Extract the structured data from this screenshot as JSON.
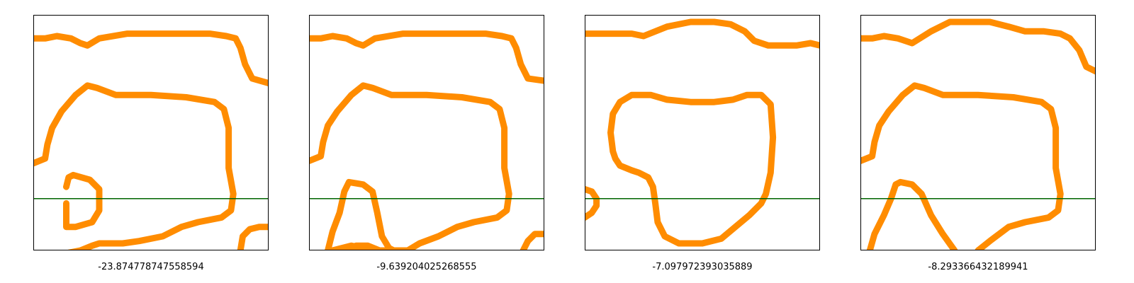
{
  "style": {
    "curve_color": "#ff8c00",
    "line_color": "#006400",
    "frame_color": "#000000",
    "background": "#ffffff"
  },
  "chart_data": [
    {
      "type": "line",
      "label": "-23.874778747558594",
      "xlim": [
        0,
        1
      ],
      "ylim": [
        0,
        1
      ],
      "axes": "off",
      "grid": false,
      "horizontal_line_y": 0.22,
      "curves": [
        {
          "x": [
            0,
            0.05,
            0.1,
            0.16,
            0.2,
            0.23,
            0.28,
            0.4,
            0.55,
            0.65,
            0.75,
            0.82,
            0.86,
            0.88,
            0.9,
            0.93,
            1.0
          ],
          "y": [
            0.9,
            0.9,
            0.91,
            0.9,
            0.88,
            0.87,
            0.9,
            0.92,
            0.92,
            0.92,
            0.92,
            0.91,
            0.9,
            0.86,
            0.79,
            0.73,
            0.71
          ]
        },
        {
          "x": [
            0,
            0.05,
            0.06,
            0.08,
            0.12,
            0.18,
            0.23,
            0.27,
            0.35,
            0.5,
            0.65,
            0.77,
            0.81,
            0.83,
            0.83,
            0.85,
            0.84,
            0.8,
            0.7,
            0.63,
            0.55,
            0.45,
            0.38,
            0.32,
            0.28,
            0.25,
            0.2,
            0.15,
            0.12
          ],
          "y": [
            0.37,
            0.39,
            0.45,
            0.52,
            0.59,
            0.66,
            0.7,
            0.69,
            0.66,
            0.66,
            0.65,
            0.63,
            0.6,
            0.52,
            0.35,
            0.24,
            0.17,
            0.14,
            0.12,
            0.1,
            0.06,
            0.04,
            0.03,
            0.03,
            0.03,
            0.02,
            0.0,
            -0.01,
            -0.02
          ]
        },
        {
          "x": [
            0.14,
            0.15,
            0.17,
            0.24,
            0.28,
            0.28,
            0.25,
            0.18,
            0.14,
            0.14
          ],
          "y": [
            0.27,
            0.31,
            0.32,
            0.3,
            0.26,
            0.17,
            0.12,
            0.1,
            0.1,
            0.2
          ]
        },
        {
          "x": [
            0.88,
            0.89,
            0.92,
            0.96,
            1.0
          ],
          "y": [
            0.0,
            0.06,
            0.09,
            0.1,
            0.1
          ]
        }
      ]
    },
    {
      "type": "line",
      "label": "-9.639204025268555",
      "xlim": [
        0,
        1
      ],
      "ylim": [
        0,
        1
      ],
      "axes": "off",
      "grid": false,
      "horizontal_line_y": 0.22,
      "curves": [
        {
          "x": [
            0,
            0.05,
            0.1,
            0.16,
            0.2,
            0.23,
            0.28,
            0.4,
            0.55,
            0.65,
            0.75,
            0.82,
            0.86,
            0.88,
            0.9,
            0.93,
            1.0
          ],
          "y": [
            0.9,
            0.9,
            0.91,
            0.9,
            0.88,
            0.87,
            0.9,
            0.92,
            0.92,
            0.92,
            0.92,
            0.91,
            0.9,
            0.86,
            0.79,
            0.73,
            0.72
          ]
        },
        {
          "x": [
            0,
            0.05,
            0.06,
            0.08,
            0.12,
            0.18,
            0.23,
            0.27,
            0.35,
            0.5,
            0.65,
            0.77,
            0.81,
            0.83,
            0.83,
            0.85,
            0.84,
            0.8,
            0.7,
            0.63,
            0.55,
            0.47,
            0.42,
            0.35,
            0.28,
            0.18,
            0.1
          ],
          "y": [
            0.38,
            0.4,
            0.46,
            0.53,
            0.59,
            0.66,
            0.7,
            0.69,
            0.66,
            0.66,
            0.65,
            0.63,
            0.6,
            0.52,
            0.35,
            0.24,
            0.17,
            0.14,
            0.12,
            0.1,
            0.06,
            0.03,
            0.0,
            0.0,
            0.0,
            0.02,
            0.0
          ]
        },
        {
          "x": [
            0.08,
            0.1,
            0.13,
            0.15,
            0.17,
            0.23,
            0.27,
            0.29,
            0.31,
            0.34,
            0.36
          ],
          "y": [
            0.0,
            0.08,
            0.16,
            0.25,
            0.29,
            0.28,
            0.25,
            0.16,
            0.06,
            0.01,
            0.0
          ]
        },
        {
          "x": [
            0.15,
            0.2,
            0.25,
            0.3
          ],
          "y": [
            0.0,
            0.02,
            0.02,
            0.0
          ]
        },
        {
          "x": [
            0.91,
            0.93,
            0.96,
            1.0
          ],
          "y": [
            0.0,
            0.04,
            0.07,
            0.07
          ]
        }
      ]
    },
    {
      "type": "line",
      "label": "-7.097972393035889",
      "xlim": [
        0,
        1
      ],
      "ylim": [
        0,
        1
      ],
      "axes": "off",
      "grid": false,
      "horizontal_line_y": 0.22,
      "curves": [
        {
          "x": [
            0,
            0.1,
            0.2,
            0.25,
            0.35,
            0.45,
            0.55,
            0.62,
            0.68,
            0.72,
            0.78,
            0.85,
            0.9,
            0.96,
            1.0
          ],
          "y": [
            0.92,
            0.92,
            0.92,
            0.91,
            0.95,
            0.97,
            0.97,
            0.96,
            0.93,
            0.89,
            0.87,
            0.87,
            0.87,
            0.88,
            0.87
          ]
        },
        {
          "x": [
            0.11,
            0.12,
            0.15,
            0.2,
            0.28,
            0.35,
            0.45,
            0.55,
            0.63,
            0.69,
            0.75,
            0.79,
            0.8,
            0.79,
            0.77,
            0.75,
            0.7,
            0.58,
            0.5,
            0.4,
            0.34,
            0.31,
            0.3,
            0.29,
            0.27,
            0.23,
            0.2,
            0.15,
            0.13,
            0.12,
            0.11
          ],
          "y": [
            0.5,
            0.58,
            0.63,
            0.66,
            0.66,
            0.64,
            0.63,
            0.63,
            0.64,
            0.66,
            0.66,
            0.62,
            0.48,
            0.33,
            0.24,
            0.2,
            0.15,
            0.05,
            0.03,
            0.03,
            0.06,
            0.12,
            0.2,
            0.27,
            0.31,
            0.33,
            0.34,
            0.36,
            0.39,
            0.42,
            0.5
          ]
        },
        {
          "x": [
            0,
            0.03,
            0.05,
            0.05,
            0.03,
            0.0
          ],
          "y": [
            0.26,
            0.25,
            0.22,
            0.19,
            0.16,
            0.14
          ]
        }
      ]
    },
    {
      "type": "line",
      "label": "-8.293366432189941",
      "xlim": [
        0,
        1
      ],
      "ylim": [
        0,
        1
      ],
      "axes": "off",
      "grid": false,
      "horizontal_line_y": 0.22,
      "curves": [
        {
          "x": [
            0,
            0.05,
            0.1,
            0.16,
            0.22,
            0.3,
            0.38,
            0.45,
            0.55,
            0.63,
            0.7,
            0.78,
            0.85,
            0.89,
            0.93,
            0.96,
            1.0
          ],
          "y": [
            0.9,
            0.9,
            0.91,
            0.9,
            0.88,
            0.93,
            0.97,
            0.97,
            0.97,
            0.95,
            0.93,
            0.93,
            0.92,
            0.9,
            0.85,
            0.78,
            0.76
          ]
        },
        {
          "x": [
            0,
            0.05,
            0.06,
            0.08,
            0.12,
            0.18,
            0.23,
            0.27,
            0.35,
            0.5,
            0.65,
            0.77,
            0.81,
            0.83,
            0.83,
            0.85,
            0.84,
            0.8,
            0.7,
            0.63,
            0.55,
            0.5
          ],
          "y": [
            0.38,
            0.4,
            0.46,
            0.53,
            0.59,
            0.66,
            0.7,
            0.69,
            0.66,
            0.66,
            0.65,
            0.63,
            0.6,
            0.52,
            0.35,
            0.24,
            0.17,
            0.14,
            0.12,
            0.1,
            0.04,
            0.0
          ]
        },
        {
          "x": [
            0.04,
            0.06,
            0.1,
            0.13,
            0.15,
            0.17,
            0.22,
            0.26,
            0.3,
            0.35,
            0.4
          ],
          "y": [
            0.0,
            0.07,
            0.15,
            0.22,
            0.28,
            0.29,
            0.28,
            0.24,
            0.15,
            0.07,
            0.0
          ]
        }
      ]
    }
  ]
}
